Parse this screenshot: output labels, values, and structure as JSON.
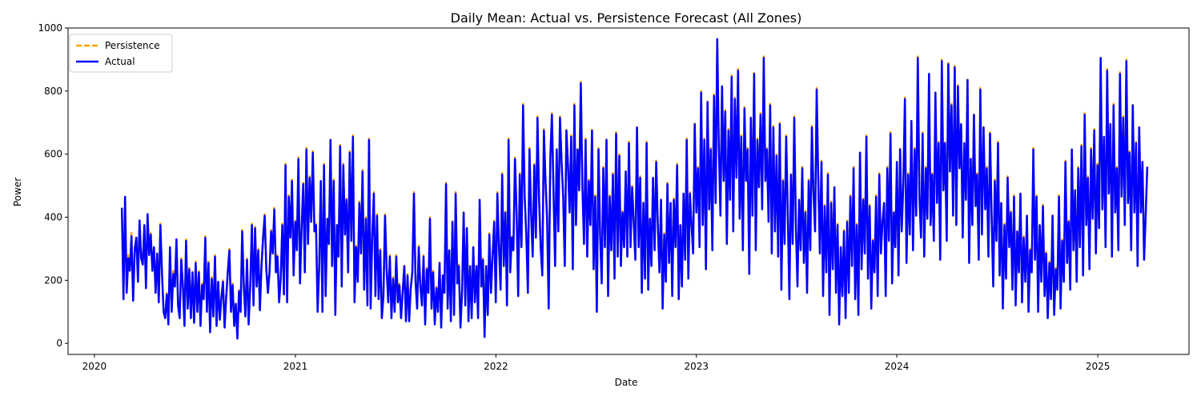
{
  "chart_data": {
    "type": "line",
    "title": "Daily Mean: Actual vs. Persistence Forecast (All Zones)",
    "xlabel": "Date",
    "ylabel": "Power",
    "x_ticks": [
      "2020",
      "2021",
      "2022",
      "2023",
      "2024",
      "2025"
    ],
    "y_ticks": [
      0,
      200,
      400,
      600,
      800,
      1000
    ],
    "xlim": [
      "2019-11-14",
      "2025-06-16"
    ],
    "ylim": [
      -35,
      1000
    ],
    "legend_position": "upper-left",
    "grid": false,
    "x_start": "2020-02-20",
    "x_end": "2025-04-01",
    "series": [
      {
        "name": "Persistence",
        "color": "#ffa500",
        "style": "dashed",
        "values": [
          420,
          150,
          460,
          170,
          280,
          240,
          350,
          140,
          300,
          340,
          200,
          380,
          280,
          260,
          370,
          180,
          400,
          280,
          350,
          240,
          300,
          170,
          280,
          140,
          380,
          230,
          110,
          90,
          160,
          70,
          300,
          110,
          230,
          190,
          320,
          130,
          90,
          270,
          190,
          60,
          330,
          120,
          240,
          90,
          230,
          70,
          260,
          110,
          230,
          60,
          190,
          150,
          340,
          110,
          260,
          40,
          210,
          90,
          280,
          60,
          200,
          80,
          150,
          200,
          60,
          150,
          230,
          300,
          110,
          190,
          60,
          130,
          20,
          170,
          110,
          360,
          190,
          90,
          270,
          70,
          190,
          380,
          130,
          370,
          190,
          300,
          110,
          250,
          340,
          410,
          240,
          170,
          230,
          360,
          290,
          430,
          230,
          280,
          140,
          210,
          380,
          160,
          570,
          140,
          470,
          340,
          520,
          220,
          390,
          300,
          590,
          200,
          370,
          510,
          230,
          620,
          320,
          530,
          390,
          610,
          360,
          380,
          110,
          250,
          520,
          110,
          570,
          160,
          400,
          320,
          650,
          250,
          520,
          100,
          380,
          280,
          630,
          190,
          570,
          350,
          460,
          230,
          610,
          330,
          660,
          140,
          310,
          200,
          450,
          290,
          550,
          180,
          400,
          130,
          650,
          120,
          340,
          480,
          160,
          410,
          150,
          300,
          90,
          160,
          410,
          240,
          140,
          280,
          90,
          210,
          110,
          280,
          140,
          190,
          90,
          170,
          250,
          80,
          220,
          80,
          180,
          230,
          480,
          200,
          120,
          310,
          190,
          130,
          280,
          70,
          240,
          170,
          400,
          120,
          230,
          70,
          180,
          110,
          260,
          60,
          220,
          170,
          510,
          120,
          300,
          80,
          390,
          100,
          480,
          200,
          250,
          60,
          170,
          420,
          130,
          370,
          80,
          250,
          90,
          310,
          140,
          250,
          90,
          460,
          190,
          270,
          30,
          250,
          100,
          350,
          170,
          280,
          390,
          140,
          480,
          310,
          180,
          540,
          250,
          420,
          130,
          650,
          230,
          340,
          300,
          590,
          420,
          160,
          540,
          310,
          760,
          470,
          350,
          170,
          620,
          420,
          280,
          570,
          340,
          720,
          460,
          310,
          220,
          680,
          520,
          400,
          120,
          590,
          730,
          490,
          250,
          620,
          360,
          720,
          580,
          470,
          250,
          680,
          570,
          420,
          660,
          240,
          760,
          380,
          620,
          490,
          830,
          500,
          320,
          650,
          280,
          520,
          380,
          680,
          240,
          470,
          110,
          620,
          350,
          200,
          560,
          310,
          650,
          160,
          470,
          300,
          540,
          210,
          670,
          280,
          600,
          250,
          420,
          310,
          550,
          280,
          640,
          310,
          500,
          390,
          270,
          690,
          310,
          530,
          170,
          450,
          210,
          640,
          180,
          400,
          250,
          530,
          300,
          580,
          380,
          230,
          460,
          120,
          350,
          200,
          510,
          260,
          450,
          160,
          460,
          310,
          570,
          150,
          380,
          190,
          480,
          270,
          650,
          210,
          480,
          380,
          290,
          700,
          420,
          560,
          310,
          800,
          380,
          650,
          240,
          770,
          430,
          620,
          300,
          790,
          450,
          960,
          630,
          410,
          820,
          520,
          740,
          320,
          680,
          460,
          850,
          360,
          780,
          530,
          870,
          400,
          660,
          300,
          750,
          520,
          620,
          230,
          720,
          410,
          860,
          300,
          650,
          500,
          730,
          430,
          910,
          520,
          620,
          390,
          760,
          290,
          690,
          360,
          600,
          280,
          700,
          180,
          520,
          320,
          660,
          420,
          150,
          540,
          320,
          720,
          380,
          190,
          460,
          300,
          560,
          260,
          420,
          170,
          520,
          300,
          690,
          480,
          360,
          810,
          520,
          290,
          580,
          160,
          440,
          230,
          540,
          100,
          450,
          240,
          500,
          170,
          380,
          70,
          310,
          160,
          360,
          90,
          390,
          170,
          470,
          250,
          560,
          150,
          380,
          100,
          610,
          240,
          460,
          290,
          660,
          210,
          440,
          120,
          330,
          230,
          470,
          160,
          540,
          290,
          390,
          450,
          160,
          560,
          330,
          670,
          200,
          420,
          310,
          580,
          220,
          620,
          360,
          510,
          780,
          260,
          540,
          350,
          710,
          300,
          620,
          410,
          910,
          470,
          340,
          670,
          280,
          560,
          400,
          860,
          380,
          540,
          330,
          800,
          450,
          640,
          270,
          900,
          490,
          640,
          330,
          890,
          550,
          760,
          410,
          880,
          380,
          820,
          560,
          700,
          340,
          640,
          460,
          840,
          260,
          590,
          380,
          730,
          440,
          540,
          270,
          810,
          350,
          690,
          430,
          560,
          280,
          670,
          410,
          190,
          520,
          330,
          640,
          220,
          450,
          120,
          380,
          210,
          530,
          310,
          420,
          180,
          470,
          130,
          360,
          230,
          480,
          140,
          340,
          200,
          410,
          110,
          300,
          230,
          620,
          270,
          470,
          110,
          380,
          200,
          440,
          160,
          290,
          90,
          260,
          150,
          410,
          100,
          240,
          180,
          470,
          120,
          330,
          200,
          580,
          260,
          390,
          180,
          620,
          300,
          490,
          200,
          560,
          310,
          630,
          220,
          730,
          380,
          530,
          240,
          620,
          400,
          680,
          290,
          570,
          370,
          910,
          430,
          660,
          310,
          870,
          480,
          700,
          280,
          760,
          420,
          560,
          300,
          860,
          470,
          720,
          380,
          900,
          450,
          610,
          300,
          760,
          420,
          640,
          250,
          690,
          420,
          580,
          270,
          410,
          560
        ]
      },
      {
        "name": "Actual",
        "color": "#0000ff",
        "style": "solid",
        "values": [
          430,
          140,
          465,
          160,
          270,
          230,
          340,
          135,
          300,
          335,
          195,
          390,
          270,
          250,
          375,
          175,
          410,
          280,
          345,
          230,
          305,
          160,
          285,
          130,
          375,
          225,
          100,
          80,
          155,
          60,
          305,
          100,
          220,
          180,
          330,
          120,
          80,
          265,
          180,
          55,
          325,
          110,
          235,
          80,
          225,
          65,
          255,
          100,
          225,
          55,
          185,
          140,
          335,
          100,
          255,
          35,
          205,
          85,
          275,
          55,
          195,
          75,
          145,
          195,
          50,
          145,
          225,
          295,
          100,
          185,
          55,
          125,
          15,
          165,
          100,
          355,
          180,
          85,
          265,
          60,
          185,
          375,
          120,
          365,
          180,
          295,
          105,
          245,
          335,
          405,
          235,
          160,
          225,
          355,
          285,
          425,
          225,
          275,
          130,
          205,
          375,
          155,
          565,
          130,
          465,
          335,
          515,
          215,
          385,
          295,
          585,
          190,
          365,
          505,
          225,
          615,
          315,
          525,
          385,
          605,
          355,
          375,
          100,
          245,
          515,
          100,
          565,
          150,
          395,
          315,
          645,
          245,
          515,
          90,
          375,
          275,
          625,
          180,
          565,
          345,
          455,
          225,
          605,
          325,
          655,
          130,
          305,
          195,
          445,
          285,
          545,
          170,
          395,
          120,
          645,
          110,
          335,
          475,
          150,
          405,
          140,
          295,
          80,
          150,
          405,
          235,
          130,
          275,
          80,
          205,
          100,
          275,
          130,
          185,
          80,
          160,
          245,
          70,
          215,
          70,
          175,
          225,
          475,
          195,
          110,
          305,
          180,
          120,
          275,
          60,
          235,
          160,
          395,
          110,
          225,
          60,
          175,
          100,
          255,
          50,
          215,
          160,
          505,
          110,
          295,
          70,
          385,
          90,
          475,
          190,
          245,
          50,
          160,
          415,
          120,
          365,
          70,
          245,
          80,
          305,
          130,
          245,
          80,
          455,
          180,
          265,
          20,
          245,
          90,
          345,
          160,
          275,
          385,
          130,
          475,
          305,
          170,
          535,
          245,
          415,
          120,
          645,
          225,
          335,
          295,
          585,
          415,
          150,
          535,
          305,
          755,
          465,
          345,
          160,
          615,
          415,
          275,
          565,
          335,
          715,
          455,
          305,
          215,
          675,
          515,
          395,
          110,
          585,
          725,
          485,
          245,
          615,
          355,
          715,
          575,
          465,
          245,
          675,
          565,
          415,
          655,
          235,
          755,
          375,
          615,
          485,
          825,
          495,
          315,
          645,
          275,
          515,
          375,
          675,
          235,
          465,
          100,
          615,
          345,
          190,
          555,
          305,
          645,
          150,
          465,
          295,
          535,
          205,
          665,
          275,
          595,
          245,
          415,
          305,
          545,
          275,
          635,
          305,
          495,
          385,
          265,
          685,
          305,
          525,
          160,
          445,
          205,
          635,
          170,
          395,
          245,
          525,
          295,
          575,
          375,
          225,
          455,
          110,
          345,
          195,
          505,
          255,
          445,
          150,
          455,
          305,
          565,
          140,
          375,
          180,
          475,
          265,
          645,
          205,
          475,
          375,
          285,
          695,
          415,
          555,
          305,
          795,
          375,
          645,
          235,
          765,
          425,
          615,
          295,
          785,
          445,
          965,
          625,
          405,
          815,
          515,
          735,
          315,
          675,
          455,
          845,
          355,
          775,
          525,
          865,
          395,
          655,
          295,
          745,
          515,
          615,
          220,
          715,
          405,
          855,
          295,
          645,
          495,
          725,
          425,
          905,
          515,
          615,
          385,
          755,
          285,
          685,
          355,
          595,
          275,
          695,
          170,
          515,
          315,
          655,
          415,
          140,
          535,
          315,
          715,
          375,
          180,
          455,
          295,
          555,
          255,
          415,
          160,
          515,
          295,
          685,
          475,
          355,
          805,
          515,
          285,
          575,
          150,
          435,
          225,
          535,
          90,
          445,
          235,
          495,
          160,
          375,
          60,
          305,
          150,
          355,
          80,
          385,
          160,
          465,
          245,
          555,
          140,
          375,
          90,
          605,
          235,
          455,
          285,
          655,
          205,
          435,
          110,
          325,
          225,
          465,
          150,
          535,
          285,
          385,
          445,
          150,
          555,
          325,
          665,
          190,
          415,
          305,
          575,
          215,
          615,
          355,
          505,
          775,
          255,
          535,
          345,
          705,
          295,
          615,
          405,
          905,
          465,
          335,
          665,
          275,
          555,
          395,
          855,
          375,
          535,
          325,
          795,
          445,
          635,
          265,
          895,
          485,
          635,
          325,
          885,
          545,
          755,
          405,
          875,
          375,
          815,
          555,
          695,
          335,
          635,
          455,
          835,
          255,
          585,
          375,
          725,
          435,
          535,
          265,
          805,
          345,
          685,
          425,
          555,
          275,
          665,
          405,
          180,
          515,
          325,
          635,
          215,
          445,
          110,
          375,
          205,
          525,
          305,
          415,
          170,
          465,
          120,
          355,
          225,
          475,
          130,
          335,
          195,
          405,
          100,
          295,
          225,
          615,
          265,
          465,
          100,
          375,
          195,
          435,
          150,
          285,
          80,
          255,
          140,
          405,
          90,
          235,
          170,
          465,
          110,
          325,
          195,
          575,
          255,
          385,
          170,
          615,
          295,
          485,
          195,
          555,
          305,
          625,
          215,
          725,
          375,
          525,
          235,
          615,
          395,
          675,
          285,
          565,
          365,
          905,
          425,
          655,
          305,
          865,
          475,
          695,
          275,
          755,
          415,
          555,
          295,
          855,
          465,
          715,
          375,
          895,
          445,
          605,
          295,
          755,
          415,
          635,
          245,
          685,
          415,
          575,
          265,
          405,
          560
        ]
      }
    ]
  }
}
